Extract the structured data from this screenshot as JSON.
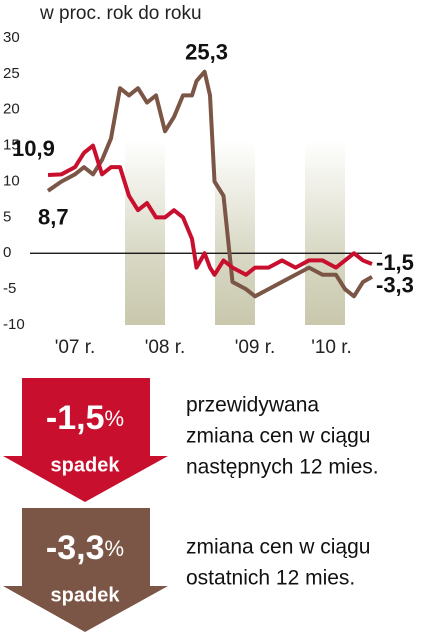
{
  "chart_data": {
    "type": "line",
    "subtitle": "w proc. rok do roku",
    "x": [
      2006.7,
      2006.85,
      2007.0,
      2007.1,
      2007.2,
      2007.3,
      2007.4,
      2007.5,
      2007.6,
      2007.7,
      2007.8,
      2007.9,
      2008.0,
      2008.1,
      2008.2,
      2008.3,
      2008.35,
      2008.44,
      2008.5,
      2008.55,
      2008.65,
      2008.75,
      2008.9,
      2009.0,
      2009.15,
      2009.3,
      2009.45,
      2009.6,
      2009.75,
      2009.9,
      2010.0,
      2010.1,
      2010.2,
      2010.3
    ],
    "series": [
      {
        "color": "#c8102e",
        "values": [
          10.9,
          11,
          12,
          14,
          15,
          11,
          12,
          12,
          8,
          6,
          7,
          5,
          5,
          6,
          5,
          2,
          -2,
          0,
          -2,
          -3,
          -1,
          -2,
          -3,
          -2,
          -2,
          -1,
          -2,
          -1,
          -1,
          -2,
          -1,
          0,
          -1,
          -1.5
        ],
        "value_labels": [
          "10,9",
          null,
          null,
          null,
          null,
          null,
          null,
          null,
          null,
          null,
          null,
          null,
          null,
          null,
          null,
          null,
          null,
          null,
          null,
          null,
          null,
          null,
          null,
          null,
          null,
          null,
          null,
          null,
          null,
          null,
          null,
          null,
          null,
          "-1,5"
        ]
      },
      {
        "color": "#7b5646",
        "values": [
          8.7,
          10,
          11,
          12,
          11,
          13,
          16,
          23,
          22,
          23,
          21,
          22,
          17,
          19,
          22,
          22,
          24,
          25.3,
          22,
          10,
          8,
          -4,
          -5,
          -6,
          -5,
          -4,
          -3,
          -2,
          -3,
          -3,
          -5,
          -6,
          -4,
          -3.3
        ],
        "value_labels": [
          "8,7",
          null,
          null,
          null,
          null,
          null,
          null,
          null,
          null,
          null,
          null,
          null,
          null,
          null,
          null,
          null,
          null,
          "25,3",
          null,
          null,
          null,
          null,
          null,
          null,
          null,
          null,
          null,
          null,
          null,
          null,
          null,
          null,
          null,
          "-3,3"
        ]
      }
    ],
    "xlim": [
      2006.55,
      2010.4
    ],
    "xticks": [
      {
        "value": 2007,
        "label": "'07 r."
      },
      {
        "value": 2008,
        "label": "'08 r."
      },
      {
        "value": 2009,
        "label": "'09 r."
      },
      {
        "value": 2009.85,
        "label": "'10 r."
      }
    ],
    "ylim": [
      -10,
      30
    ],
    "yticks": [
      30,
      25,
      20,
      15,
      10,
      5,
      0,
      -5,
      -10
    ],
    "zero_line": true
  },
  "callouts": [
    {
      "value": "-1,5",
      "unit": "%",
      "label": "spadek",
      "color": "#c8102e",
      "text": [
        "przewidywana",
        "zmiana cen w ciągu",
        "następnych 12 mies."
      ]
    },
    {
      "value": "-3,3",
      "unit": "%",
      "label": "spadek",
      "color": "#7b5646",
      "text": [
        "zmiana cen w ciągu",
        "ostatnich 12 mies."
      ]
    }
  ]
}
